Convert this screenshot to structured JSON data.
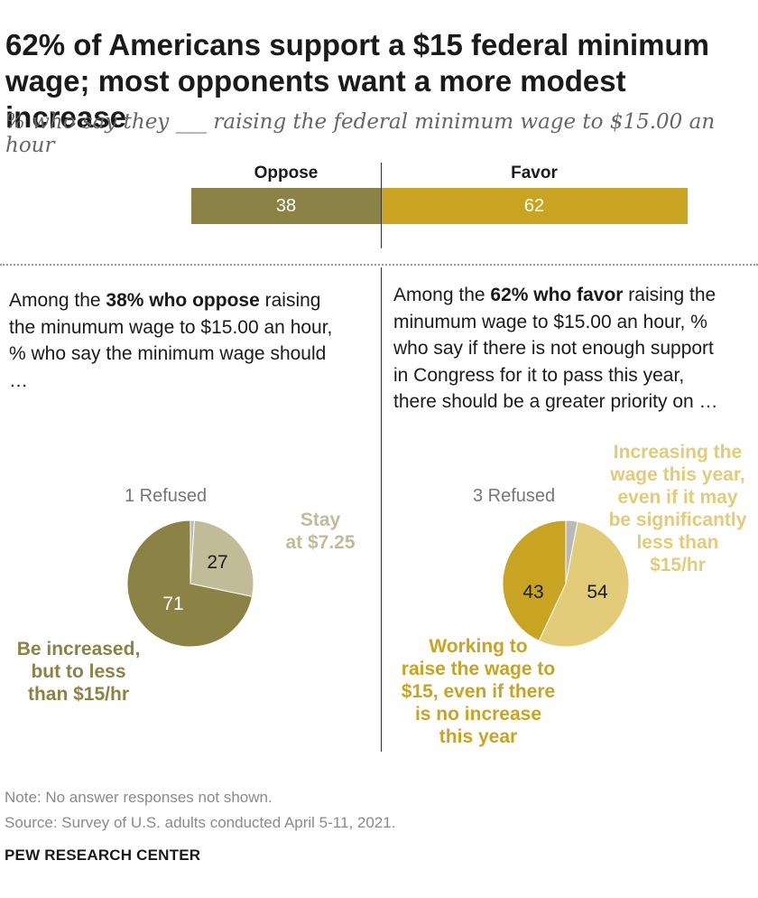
{
  "title_line1": "62% of Americans support a $15 federal minimum",
  "title_line2": "wage; most opponents want a more modest increase",
  "subtitle": "% who say they ___ raising the federal minimum wage to $15.00 an hour",
  "colors": {
    "oppose": "#8b8346",
    "favor": "#c9a322",
    "stay": "#c1bb98",
    "working": "#c9a322",
    "increasing_this_year": "#e2cb79",
    "refused": "#b9b9b9"
  },
  "chart_data": [
    {
      "type": "bar",
      "categories": [
        "Oppose",
        "Favor"
      ],
      "values": [
        38,
        62
      ],
      "stacked": true
    },
    {
      "type": "pie",
      "intro": {
        "prefix": "Among the ",
        "bold": "38% who oppose",
        "suffix": " raising the minumum wage to $15.00 an hour, % who say the minimum wage should …"
      },
      "refused_label": "1 Refused",
      "slices": [
        {
          "key": "refused",
          "value": 1
        },
        {
          "key": "stay",
          "label": "Stay at $7.25",
          "value": 27
        },
        {
          "key": "increase",
          "label": "Be increased, but to less than $15/hr",
          "value": 71
        }
      ]
    },
    {
      "type": "pie",
      "intro": {
        "prefix": "Among the ",
        "bold": "62% who favor",
        "suffix": " raising the minumum wage to $15.00 an hour, % who say if there is not enough support in Congress for it to pass this year,  there should be a greater priority on …"
      },
      "refused_label": "3 Refused",
      "slices": [
        {
          "key": "refused",
          "value": 3
        },
        {
          "key": "increasing",
          "label": "Increasing the wage this year, even if it may be significantly less than $15/hr",
          "value": 54
        },
        {
          "key": "working",
          "label": "Working to raise the wage to $15, even if there is no increase this year",
          "value": 43
        }
      ]
    }
  ],
  "labels": {
    "stay_lines": [
      "Stay",
      "at $7.25"
    ],
    "increase_lines": [
      "Be increased,",
      "but to less",
      "than $15/hr"
    ],
    "increasing_lines": [
      "Increasing the",
      "wage this year,",
      "even if it may",
      "be significantly",
      "less than",
      "$15/hr"
    ],
    "working_lines": [
      "Working to",
      "raise the wage to",
      "$15, even if there",
      "is no increase",
      "this year"
    ]
  },
  "note": "Note: No answer responses not shown.",
  "source": "Source: Survey of U.S. adults conducted April 5-11, 2021.",
  "brand": "PEW RESEARCH CENTER"
}
